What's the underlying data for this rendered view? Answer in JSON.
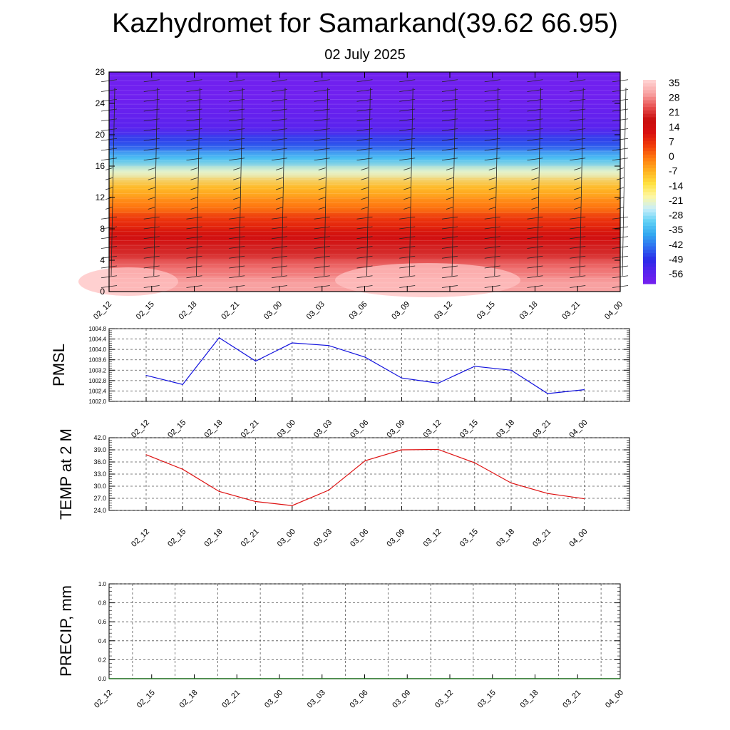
{
  "header": {
    "title": "Kazhydromet for Samarkand(39.62 66.95)",
    "subtitle": "02 July 2025"
  },
  "colors": {
    "pmsl_line": "#1010dd",
    "temp_line": "#dd1010",
    "precip_line": "#1a6b1a",
    "grid": "#555555",
    "colorbar": [
      "#7a1ff0",
      "#5a22ee",
      "#2a2ae8",
      "#2f6ef0",
      "#33a8f0",
      "#5fd0f5",
      "#c8eefa",
      "#fff7a0",
      "#ffe040",
      "#ffb020",
      "#ff7a10",
      "#f03a0a",
      "#d81010",
      "#c80e0e",
      "#e85050",
      "#f8a0a0",
      "#ffd0d0"
    ]
  },
  "chart_data": [
    {
      "type": "heatmap",
      "id": "temperature-cross-section",
      "x_categories": [
        "02_12",
        "02_15",
        "02_18",
        "02_21",
        "03_00",
        "03_03",
        "03_06",
        "03_09",
        "03_12",
        "03_15",
        "03_18",
        "03_21",
        "04_00"
      ],
      "y_ticks": [
        0,
        4,
        8,
        12,
        16,
        20,
        24,
        28
      ],
      "ylim": [
        0,
        28
      ],
      "colorbar": {
        "labels": [
          "35",
          "28",
          "21",
          "14",
          "7",
          "0",
          "-7",
          "-14",
          "-21",
          "-28",
          "-35",
          "-42",
          "-49",
          "-56"
        ],
        "range": [
          -60,
          38
        ]
      },
      "bands": [
        {
          "from": 0,
          "to": 2,
          "value": 32
        },
        {
          "from": 2,
          "to": 4,
          "value": 28
        },
        {
          "from": 4,
          "to": 6,
          "value": 22
        },
        {
          "from": 6,
          "to": 8,
          "value": 16
        },
        {
          "from": 8,
          "to": 10,
          "value": 9
        },
        {
          "from": 10,
          "to": 12,
          "value": 1
        },
        {
          "from": 12,
          "to": 14.5,
          "value": -6
        },
        {
          "from": 14.5,
          "to": 16,
          "value": -20
        },
        {
          "from": 16,
          "to": 18,
          "value": -32
        },
        {
          "from": 18,
          "to": 20,
          "value": -45
        },
        {
          "from": 20,
          "to": 22,
          "value": -54
        },
        {
          "from": 22,
          "to": 28,
          "value": -58
        }
      ]
    },
    {
      "type": "line",
      "id": "pmsl",
      "ylabel": "PMSL",
      "x_categories": [
        "02_12",
        "02_15",
        "02_18",
        "02_21",
        "03_00",
        "03_03",
        "03_06",
        "03_09",
        "03_12",
        "03_15",
        "03_18",
        "03_21",
        "04_00"
      ],
      "values": [
        1003.0,
        1002.65,
        1004.45,
        1003.55,
        1004.25,
        1004.15,
        1003.7,
        1002.9,
        1002.7,
        1003.35,
        1003.2,
        1002.3,
        1002.45
      ],
      "ylim": [
        1002.0,
        1004.8
      ],
      "y_ticks": [
        "1002.0",
        "1002.4",
        "1002.8",
        "1003.2",
        "1003.6",
        "1004.0",
        "1004.4",
        "1004.8"
      ]
    },
    {
      "type": "line",
      "id": "temp2m",
      "ylabel": "TEMP at 2 M",
      "x_categories": [
        "02_12",
        "02_15",
        "02_18",
        "02_21",
        "03_00",
        "03_03",
        "03_06",
        "03_09",
        "03_12",
        "03_15",
        "03_18",
        "03_21",
        "04_00"
      ],
      "values": [
        37.8,
        34.2,
        28.7,
        26.2,
        25.2,
        29.0,
        36.3,
        39.0,
        39.1,
        35.8,
        30.8,
        28.2,
        26.9
      ],
      "ylim": [
        24.0,
        42.0
      ],
      "y_ticks": [
        "24.0",
        "27.0",
        "30.0",
        "33.0",
        "36.0",
        "39.0",
        "42.0"
      ]
    },
    {
      "type": "line",
      "id": "precip",
      "ylabel": "PRECIP, mm",
      "x_categories": [
        "02_12",
        "02_15",
        "02_18",
        "02_21",
        "03_00",
        "03_03",
        "03_06",
        "03_09",
        "03_12",
        "03_15",
        "03_18",
        "03_21",
        "04_00"
      ],
      "values": [
        0,
        0,
        0,
        0,
        0,
        0,
        0,
        0,
        0,
        0,
        0,
        0,
        0
      ],
      "ylim": [
        0.0,
        1.0
      ],
      "y_ticks": [
        "0.0",
        "0.2",
        "0.4",
        "0.6",
        "0.8",
        "1.0"
      ]
    }
  ]
}
